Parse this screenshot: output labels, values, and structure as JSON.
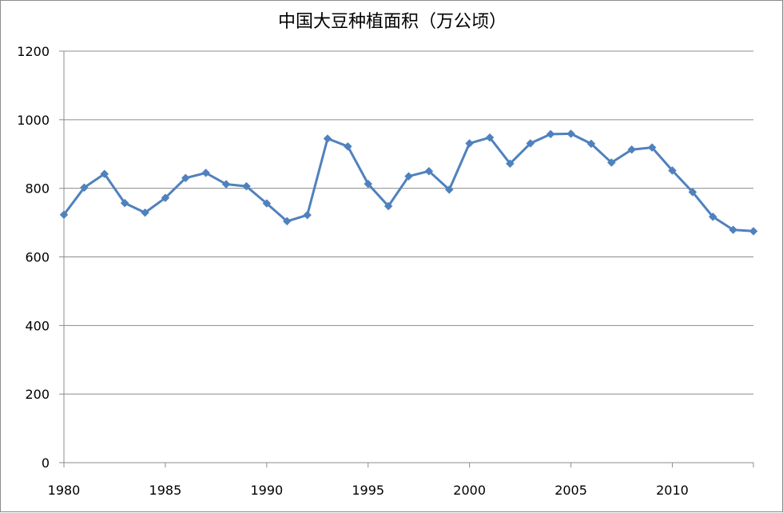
{
  "chart_data": {
    "type": "line",
    "title": "中国大豆种植面积（万公顷）",
    "xlabel": "",
    "ylabel": "",
    "xlim": [
      1980,
      2014
    ],
    "ylim": [
      0,
      1200
    ],
    "x_ticks": [
      1980,
      1985,
      1990,
      1995,
      2000,
      2005,
      2010
    ],
    "y_ticks": [
      0,
      200,
      400,
      600,
      800,
      1000,
      1200
    ],
    "grid": "horizontal",
    "legend": "none",
    "series": [
      {
        "color": "#4F81BD",
        "marker": "diamond",
        "x": [
          1980,
          1981,
          1982,
          1983,
          1984,
          1985,
          1986,
          1987,
          1988,
          1989,
          1990,
          1991,
          1992,
          1993,
          1994,
          1995,
          1996,
          1997,
          1998,
          1999,
          2000,
          2001,
          2002,
          2003,
          2004,
          2005,
          2006,
          2007,
          2008,
          2009,
          2010,
          2011,
          2012,
          2013,
          2014
        ],
        "values": [
          723,
          802,
          842,
          757,
          729,
          772,
          830,
          845,
          812,
          806,
          756,
          704,
          722,
          945,
          922,
          813,
          748,
          835,
          850,
          796,
          931,
          948,
          872,
          931,
          958,
          959,
          930,
          875,
          913,
          919,
          852,
          789,
          717,
          679,
          675
        ]
      }
    ]
  }
}
